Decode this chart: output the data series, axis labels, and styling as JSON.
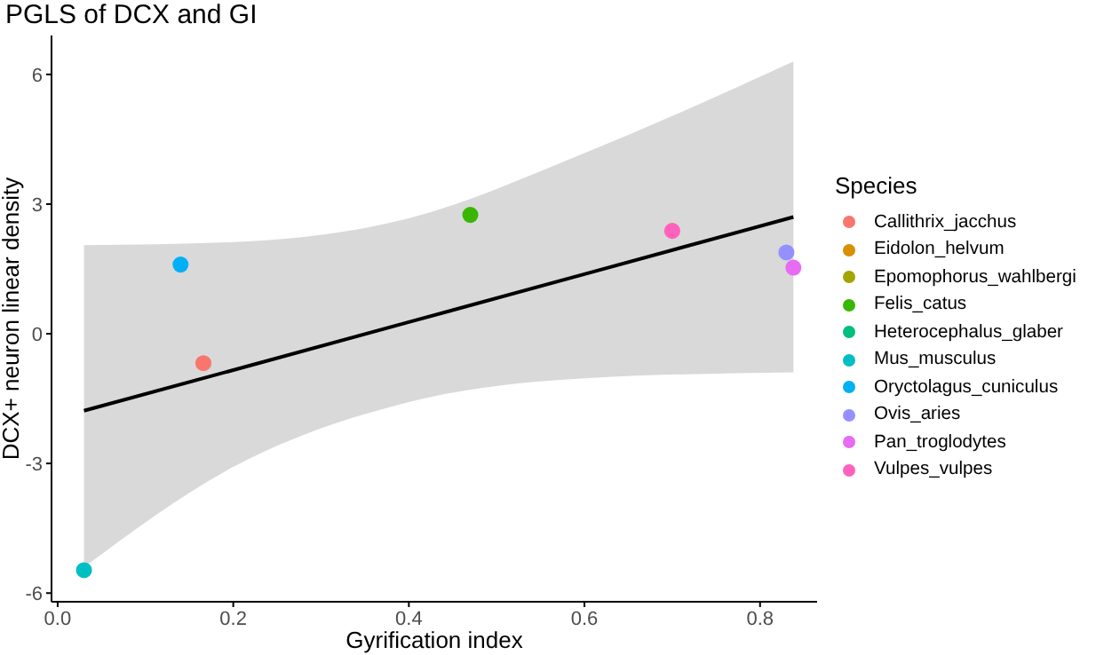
{
  "chart_data": {
    "type": "scatter",
    "title": "PGLS of DCX and GI",
    "xlabel": "Gyrification index",
    "ylabel": "DCX+ neuron linear density",
    "legend_title": "Species",
    "xlim": [
      -0.007,
      0.865
    ],
    "ylim": [
      -6.2,
      6.9
    ],
    "xticks": [
      {
        "value": 0,
        "label": "0.0"
      },
      0.2,
      0.4,
      0.6,
      0.8
    ],
    "yticks": [
      -6,
      -3,
      0,
      3,
      6
    ],
    "grid": false,
    "legend": "right",
    "marker": "circle",
    "series": [
      {
        "name": "Callithrix_jacchus",
        "color": "#f8766d",
        "x": [
          0.166
        ],
        "values": [
          -0.68
        ]
      },
      {
        "name": "Eidolon_helvum",
        "color": "#d89000"
      },
      {
        "name": "Epomophorus_wahlbergi",
        "color": "#a3a500"
      },
      {
        "name": "Felis_catus",
        "color": "#39b600",
        "x": [
          0.47
        ],
        "values": [
          2.75
        ]
      },
      {
        "name": "Heterocephalus_glaber",
        "color": "#00bf7d"
      },
      {
        "name": "Mus_musculus",
        "color": "#00bfc4",
        "x": [
          0.03
        ],
        "values": [
          -5.47
        ]
      },
      {
        "name": "Oryctolagus_cuniculus",
        "color": "#00b0f6",
        "x": [
          0.14
        ],
        "values": [
          1.6
        ]
      },
      {
        "name": "Ovis_aries",
        "color": "#9590ff",
        "x": [
          0.83
        ],
        "values": [
          1.88
        ]
      },
      {
        "name": "Pan_troglodytes",
        "color": "#e76bf3",
        "x": [
          0.838
        ],
        "values": [
          1.53
        ]
      },
      {
        "name": "Vulpes_vulpes",
        "color": "#ff62bc",
        "x": [
          0.7
        ],
        "values": [
          2.38
        ]
      },
      {
        "type": "line",
        "marker": "none",
        "color": "#000000",
        "x": [
          0.03,
          0.2,
          0.4,
          0.6,
          0.838
        ],
        "values": [
          -1.78,
          -0.84,
          0.27,
          1.38,
          2.7
        ],
        "lower": [
          -5.4,
          -3.08,
          -1.58,
          -1.03,
          -0.89
        ],
        "upper": [
          2.05,
          2.12,
          2.67,
          4.18,
          6.3
        ]
      }
    ]
  }
}
